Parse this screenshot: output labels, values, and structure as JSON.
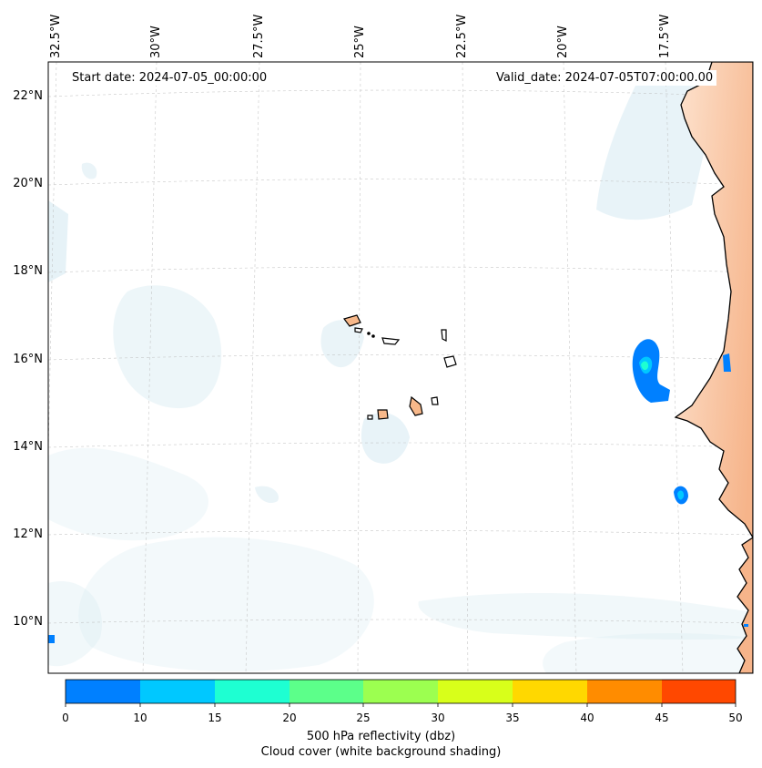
{
  "map": {
    "start_date": "Start date: 2024-07-05_00:00:00",
    "valid_date": "Valid_date: 2024-07-05T07:00:00.00",
    "lon_labels": [
      "32.5°W",
      "30°W",
      "27.5°W",
      "25°W",
      "22.5°W",
      "20°W",
      "17.5°W"
    ],
    "lat_labels": [
      "22°N",
      "20°N",
      "18°N",
      "16°N",
      "14°N",
      "12°N",
      "10°N"
    ],
    "colors": {
      "land": "#f9c9a2",
      "cloud": "#d6eaf2",
      "coast": "#000000"
    }
  },
  "colorbar": {
    "ticks": [
      "0",
      "10",
      "15",
      "20",
      "25",
      "30",
      "35",
      "40",
      "45",
      "50"
    ],
    "colors": [
      "#0080ff",
      "#00c8ff",
      "#1effd2",
      "#5cff8a",
      "#9cff50",
      "#d8ff1a",
      "#ffd800",
      "#ff8c00",
      "#ff4800"
    ],
    "title_line1": "500 hPa reflectivity (dbz)",
    "title_line2": "Cloud cover (white background shading)"
  }
}
